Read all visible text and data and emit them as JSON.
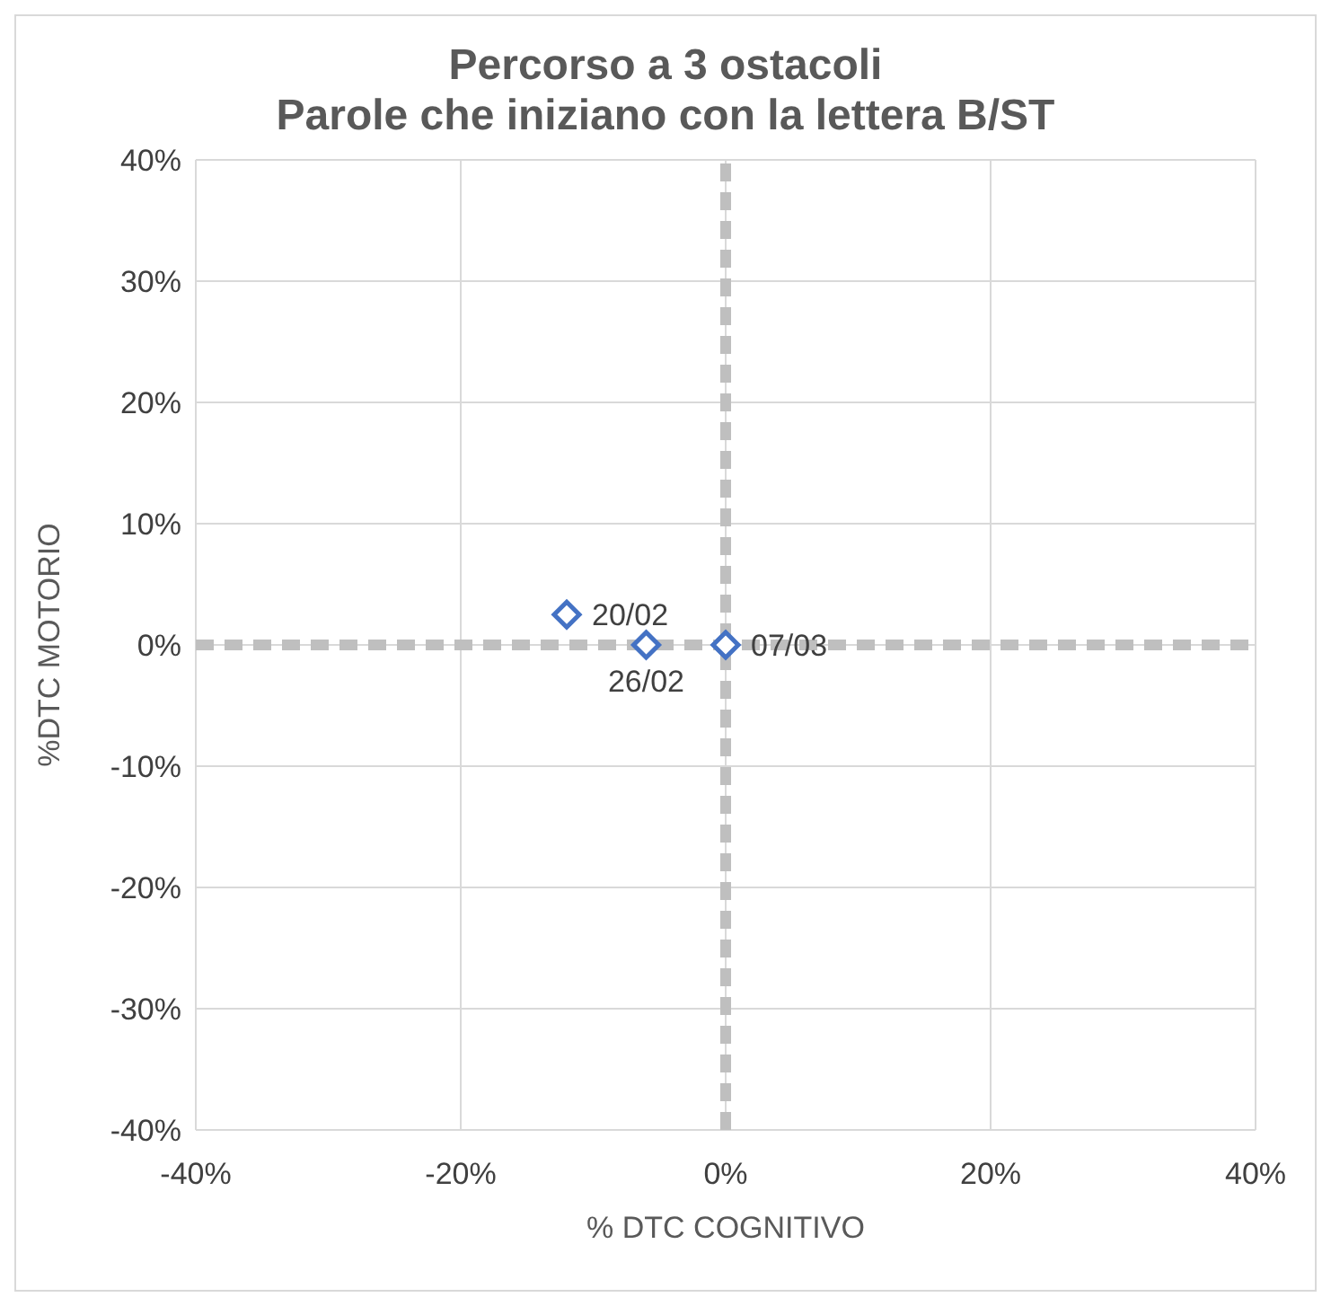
{
  "chart_data": {
    "type": "scatter",
    "title": "Percorso a 3 ostacoli\nParole che iniziano con la lettera B/ST",
    "xlabel": "% DTC COGNITIVO",
    "ylabel": "%DTC MOTORIO",
    "x": [
      -0.12,
      -0.06,
      0
    ],
    "series": [
      {
        "color": "#4472c4",
        "values": [
          0.025,
          0,
          0
        ]
      }
    ],
    "xlim": [
      -0.4,
      0.4
    ],
    "ylim": [
      -0.4,
      0.4
    ],
    "xticks": [
      {
        "value": -0.4,
        "label": "-40%"
      },
      {
        "value": -0.2,
        "label": "-20%"
      },
      {
        "value": 0,
        "label": "0%"
      },
      {
        "value": 0.2,
        "label": "20%"
      },
      {
        "value": 0.4,
        "label": "40%"
      }
    ],
    "yticks": [
      {
        "value": -0.4,
        "label": "-40%"
      },
      {
        "value": -0.3,
        "label": "-30%"
      },
      {
        "value": -0.2,
        "label": "-20%"
      },
      {
        "value": -0.1,
        "label": "-10%"
      },
      {
        "value": 0,
        "label": "0%"
      },
      {
        "value": 0.1,
        "label": "10%"
      },
      {
        "value": 0.2,
        "label": "20%"
      },
      {
        "value": 0.3,
        "label": "30%"
      },
      {
        "value": 0.4,
        "label": "40%"
      }
    ],
    "grid": true,
    "marker": "diamond",
    "annotations": [
      {
        "text": "20/02",
        "x": -0.12,
        "y": 0.025
      },
      {
        "text": "26/02",
        "x": -0.06,
        "y": 0
      },
      {
        "text": "07/03",
        "x": 0,
        "y": 0
      }
    ]
  }
}
